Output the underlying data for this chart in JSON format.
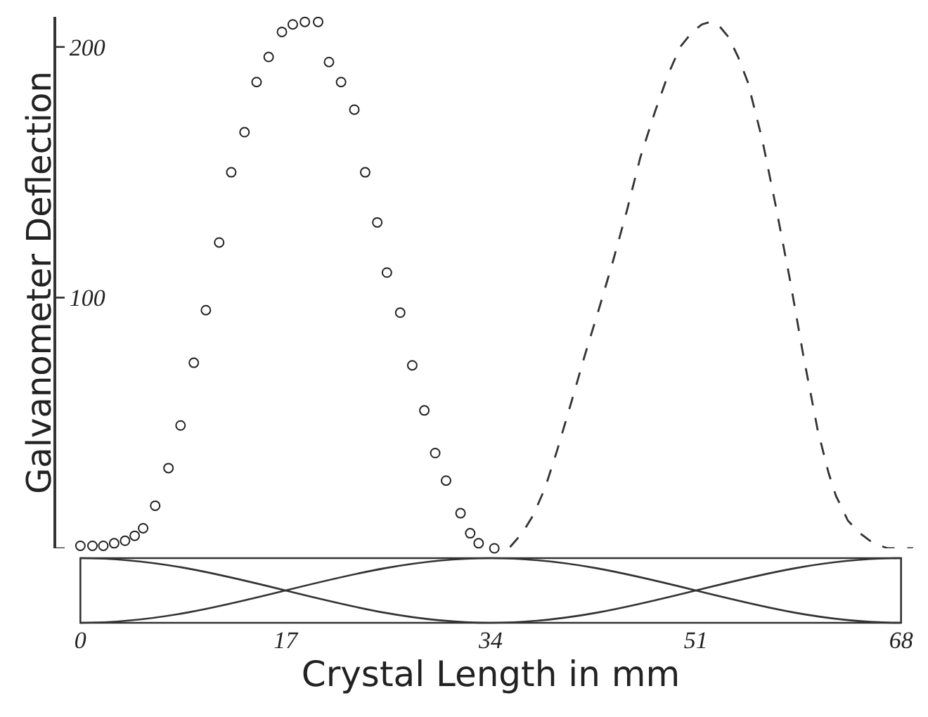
{
  "chart_data": {
    "type": "scatter",
    "xlabel": "Crystal Length in mm",
    "ylabel": "Galvanometer Deflection",
    "xlim": [
      -2,
      70
    ],
    "ylim": [
      0,
      212
    ],
    "xticks": [
      0,
      17,
      34,
      51,
      68
    ],
    "yticks": [
      {
        "value": 0,
        "label": null
      },
      100,
      200
    ],
    "series": [
      {
        "marker": "circle",
        "color": "#222222",
        "x": [
          0,
          1,
          1.9,
          2.8,
          3.7,
          4.5,
          5.2,
          6.2,
          7.3,
          8.3,
          9.4,
          10.4,
          11.5,
          12.5,
          13.6,
          14.6,
          15.6,
          16.7,
          17.6,
          18.6,
          19.7,
          20.6,
          21.6,
          22.7,
          23.6,
          24.6,
          25.4,
          26.5,
          27.5,
          28.5,
          29.4,
          30.3,
          31.5,
          32.3,
          33.0,
          34.3
        ],
        "values": [
          1,
          1,
          1,
          2,
          3,
          5,
          8,
          17,
          32,
          49,
          74,
          95,
          122,
          150,
          166,
          186,
          196,
          206,
          209,
          210,
          210,
          194,
          186,
          175,
          150,
          130,
          110,
          94,
          73,
          55,
          38,
          27,
          14,
          6,
          2,
          0
        ]
      },
      {
        "type": "line",
        "marker": "none",
        "line_style": "dashed",
        "color": "#333333",
        "x": [
          35.6,
          36.6,
          37.5,
          38.5,
          39.5,
          40.6,
          41.8,
          43,
          44.1,
          45.3,
          46.4,
          47.6,
          48.7,
          49.7,
          50.7,
          51.5,
          52.2,
          53,
          53.7,
          54.5,
          55.3,
          56.5,
          57.6,
          58.8,
          59.9,
          61.1,
          62,
          62.6,
          63.6,
          64.6,
          65.7,
          66.9,
          69
        ],
        "values": [
          0.5,
          6,
          13,
          24,
          39,
          57,
          77,
          96,
          114,
          135,
          156,
          174,
          189,
          200,
          206,
          209,
          210,
          208,
          204,
          196,
          186,
          163,
          137,
          107,
          77,
          47,
          30,
          21,
          11,
          6,
          2,
          0,
          0
        ]
      }
    ]
  }
}
